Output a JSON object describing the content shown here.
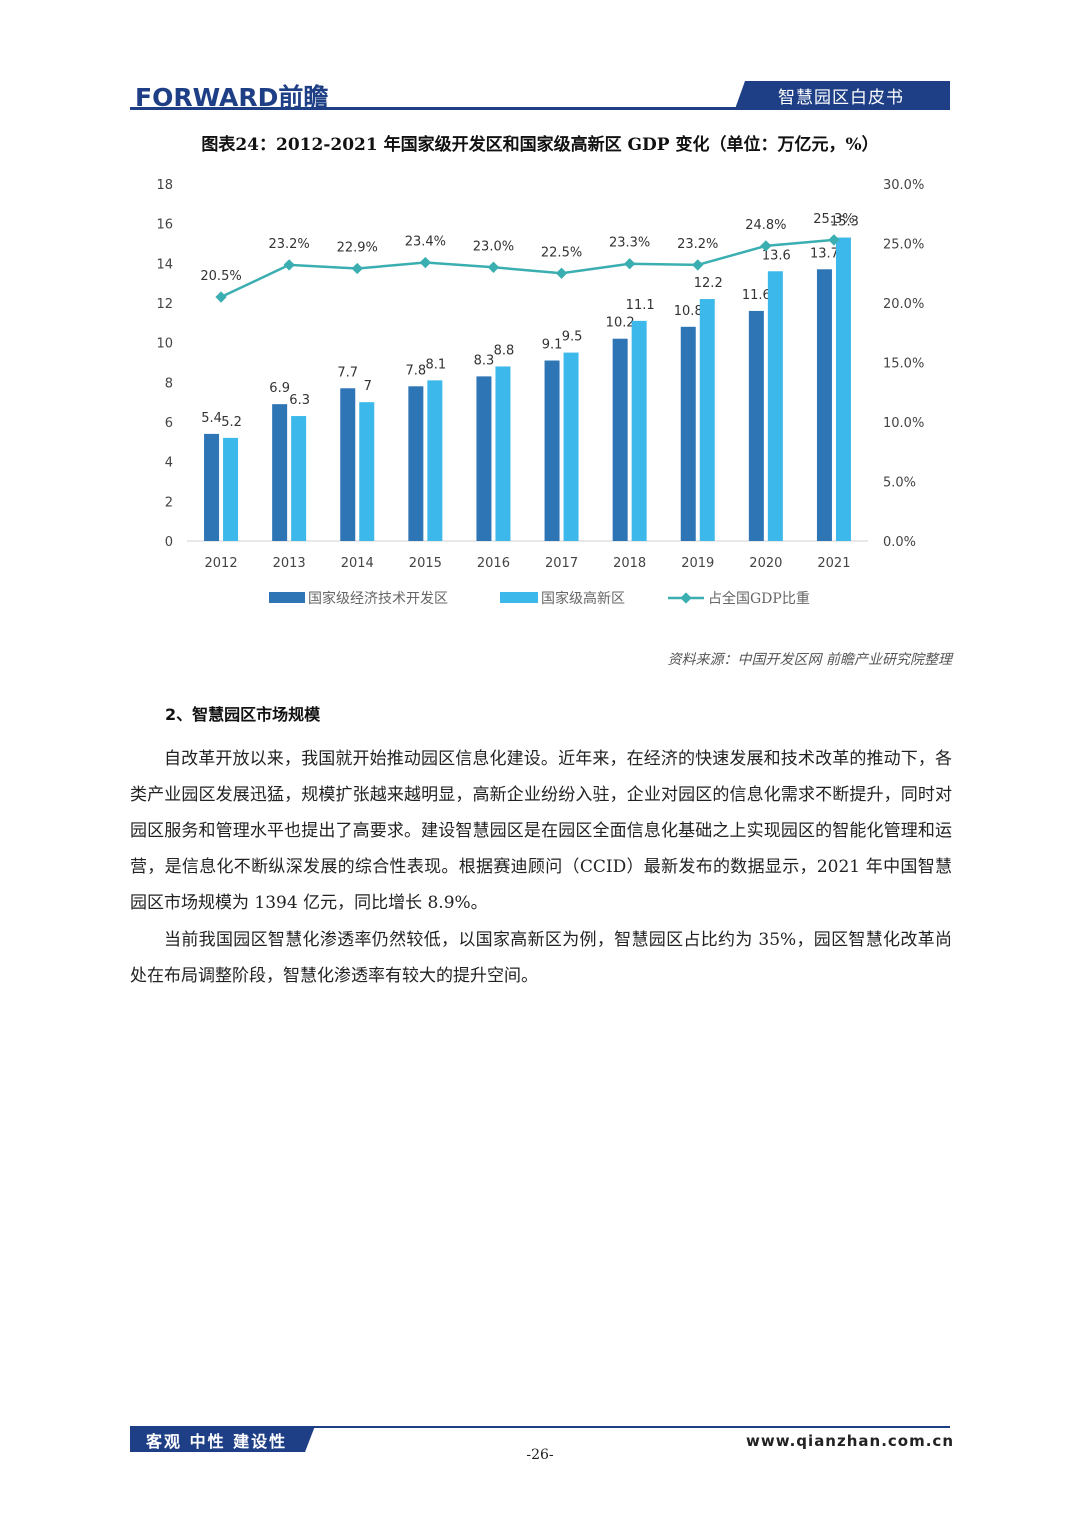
{
  "header": {
    "logo_text": "FORWARD前瞻",
    "tab_label": "智慧园区白皮书"
  },
  "chart_title": "图表24：2012-2021 年国家级开发区和国家级高新区 GDP 变化（单位：万亿元，%）",
  "chart_data": {
    "type": "bar",
    "categories": [
      "2012",
      "2013",
      "2014",
      "2015",
      "2016",
      "2017",
      "2018",
      "2019",
      "2020",
      "2021"
    ],
    "series": [
      {
        "name": "国家级经济技术开发区",
        "type": "bar",
        "axis": "left",
        "color": "#2e75b6",
        "values": [
          5.4,
          6.9,
          7.7,
          7.8,
          8.3,
          9.1,
          10.2,
          10.8,
          11.6,
          13.7
        ],
        "labels": [
          "5.4",
          "6.9",
          "7.7",
          "7.8",
          "8.3",
          "9.1",
          "10.2",
          "10.8",
          "11.6",
          "13.7"
        ]
      },
      {
        "name": "国家级高新区",
        "type": "bar",
        "axis": "left",
        "color": "#3cb8ea",
        "values": [
          5.2,
          6.3,
          7,
          8.1,
          8.8,
          9.5,
          11.1,
          12.2,
          13.6,
          15.3
        ],
        "labels": [
          "5.2",
          "6.3",
          "7",
          "8.1",
          "8.8",
          "9.5",
          "11.1",
          "12.2",
          "13.6",
          "15.3"
        ]
      },
      {
        "name": "占全国GDP比重",
        "type": "line",
        "axis": "right",
        "color": "#3aaeb0",
        "values": [
          20.5,
          23.2,
          22.9,
          23.4,
          23.0,
          22.5,
          23.3,
          23.2,
          24.8,
          25.3
        ],
        "labels": [
          "20.5%",
          "23.2%",
          "22.9%",
          "23.4%",
          "23.0%",
          "22.5%",
          "23.3%",
          "23.2%",
          "24.8%",
          "25.3%"
        ]
      }
    ],
    "ylim": [
      0,
      18
    ],
    "yticks": [
      "0",
      "2",
      "4",
      "6",
      "8",
      "10",
      "12",
      "14",
      "16",
      "18"
    ],
    "y2lim": [
      0,
      30
    ],
    "y2ticks": [
      "0.0%",
      "5.0%",
      "10.0%",
      "15.0%",
      "20.0%",
      "25.0%",
      "30.0%"
    ],
    "legend_position": "bottom",
    "grid": false
  },
  "source": "资料来源：中国开发区网 前瞻产业研究院整理",
  "section_heading": "2、智慧园区市场规模",
  "paragraphs": [
    "自改革开放以来，我国就开始推动园区信息化建设。近年来，在经济的快速发展和技术改革的推动下，各类产业园区发展迅猛，规模扩张越来越明显，高新企业纷纷入驻，企业对园区的信息化需求不断提升，同时对园区服务和管理水平也提出了高要求。建设智慧园区是在园区全面信息化基础之上实现园区的智能化管理和运营，是信息化不断纵深发展的综合性表现。根据赛迪顾问（CCID）最新发布的数据显示，2021 年中国智慧园区市场规模为 1394 亿元，同比增长 8.9%。",
    "当前我国园区智慧化渗透率仍然较低，以国家高新区为例，智慧园区占比约为 35%，园区智慧化改革尚处在布局调整阶段，智慧化渗透率有较大的提升空间。"
  ],
  "footer": {
    "slogan": "客观 中性 建设性",
    "url": "www.qianzhan.com.cn",
    "page_number": "-26-"
  }
}
